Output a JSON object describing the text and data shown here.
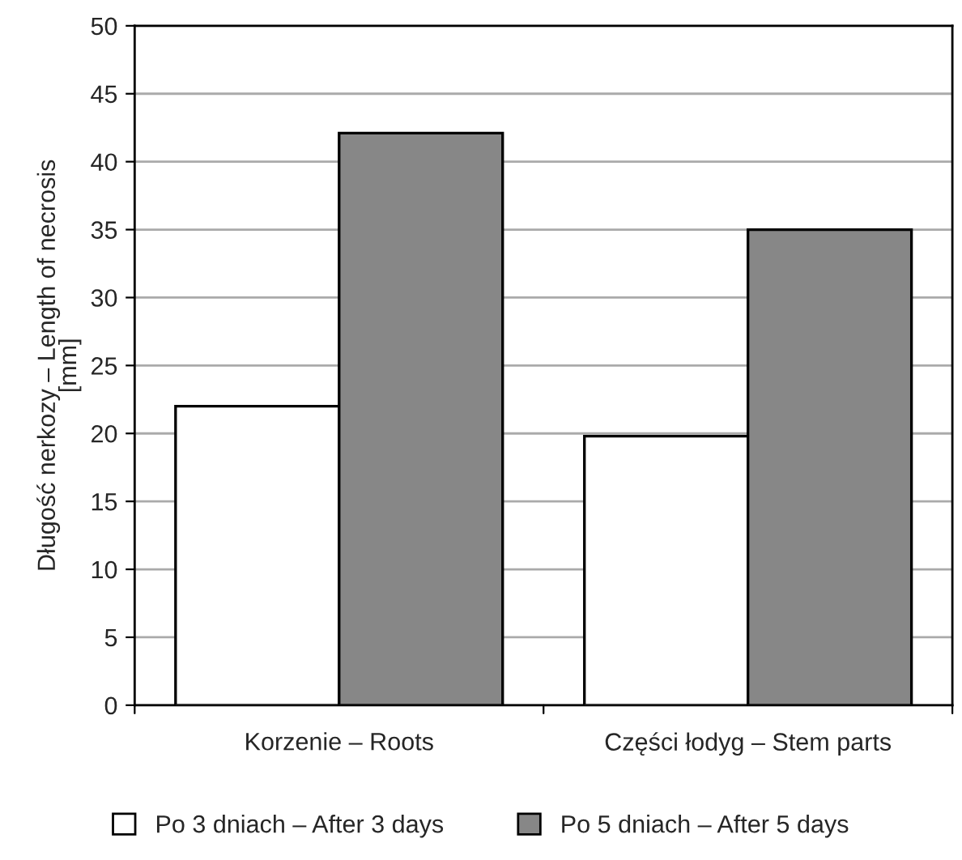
{
  "chart_data": {
    "type": "bar",
    "ylabel": "Długość nerkozy – Length of necrosis\n[mm]",
    "categories": [
      "Korzenie – Roots",
      "Części łodyg – Stem parts"
    ],
    "series": [
      {
        "name": "Po 3 dniach – After 3 days",
        "color": "#ffffff",
        "values": [
          22,
          19.8
        ]
      },
      {
        "name": "Po 5 dniach – After 5 days",
        "color": "#878787",
        "values": [
          42.1,
          35
        ]
      }
    ],
    "ylim": [
      0,
      50
    ],
    "yticks": [
      0,
      5,
      10,
      15,
      20,
      25,
      30,
      35,
      40,
      45,
      50
    ],
    "grid": "y",
    "legend": "bottom"
  }
}
